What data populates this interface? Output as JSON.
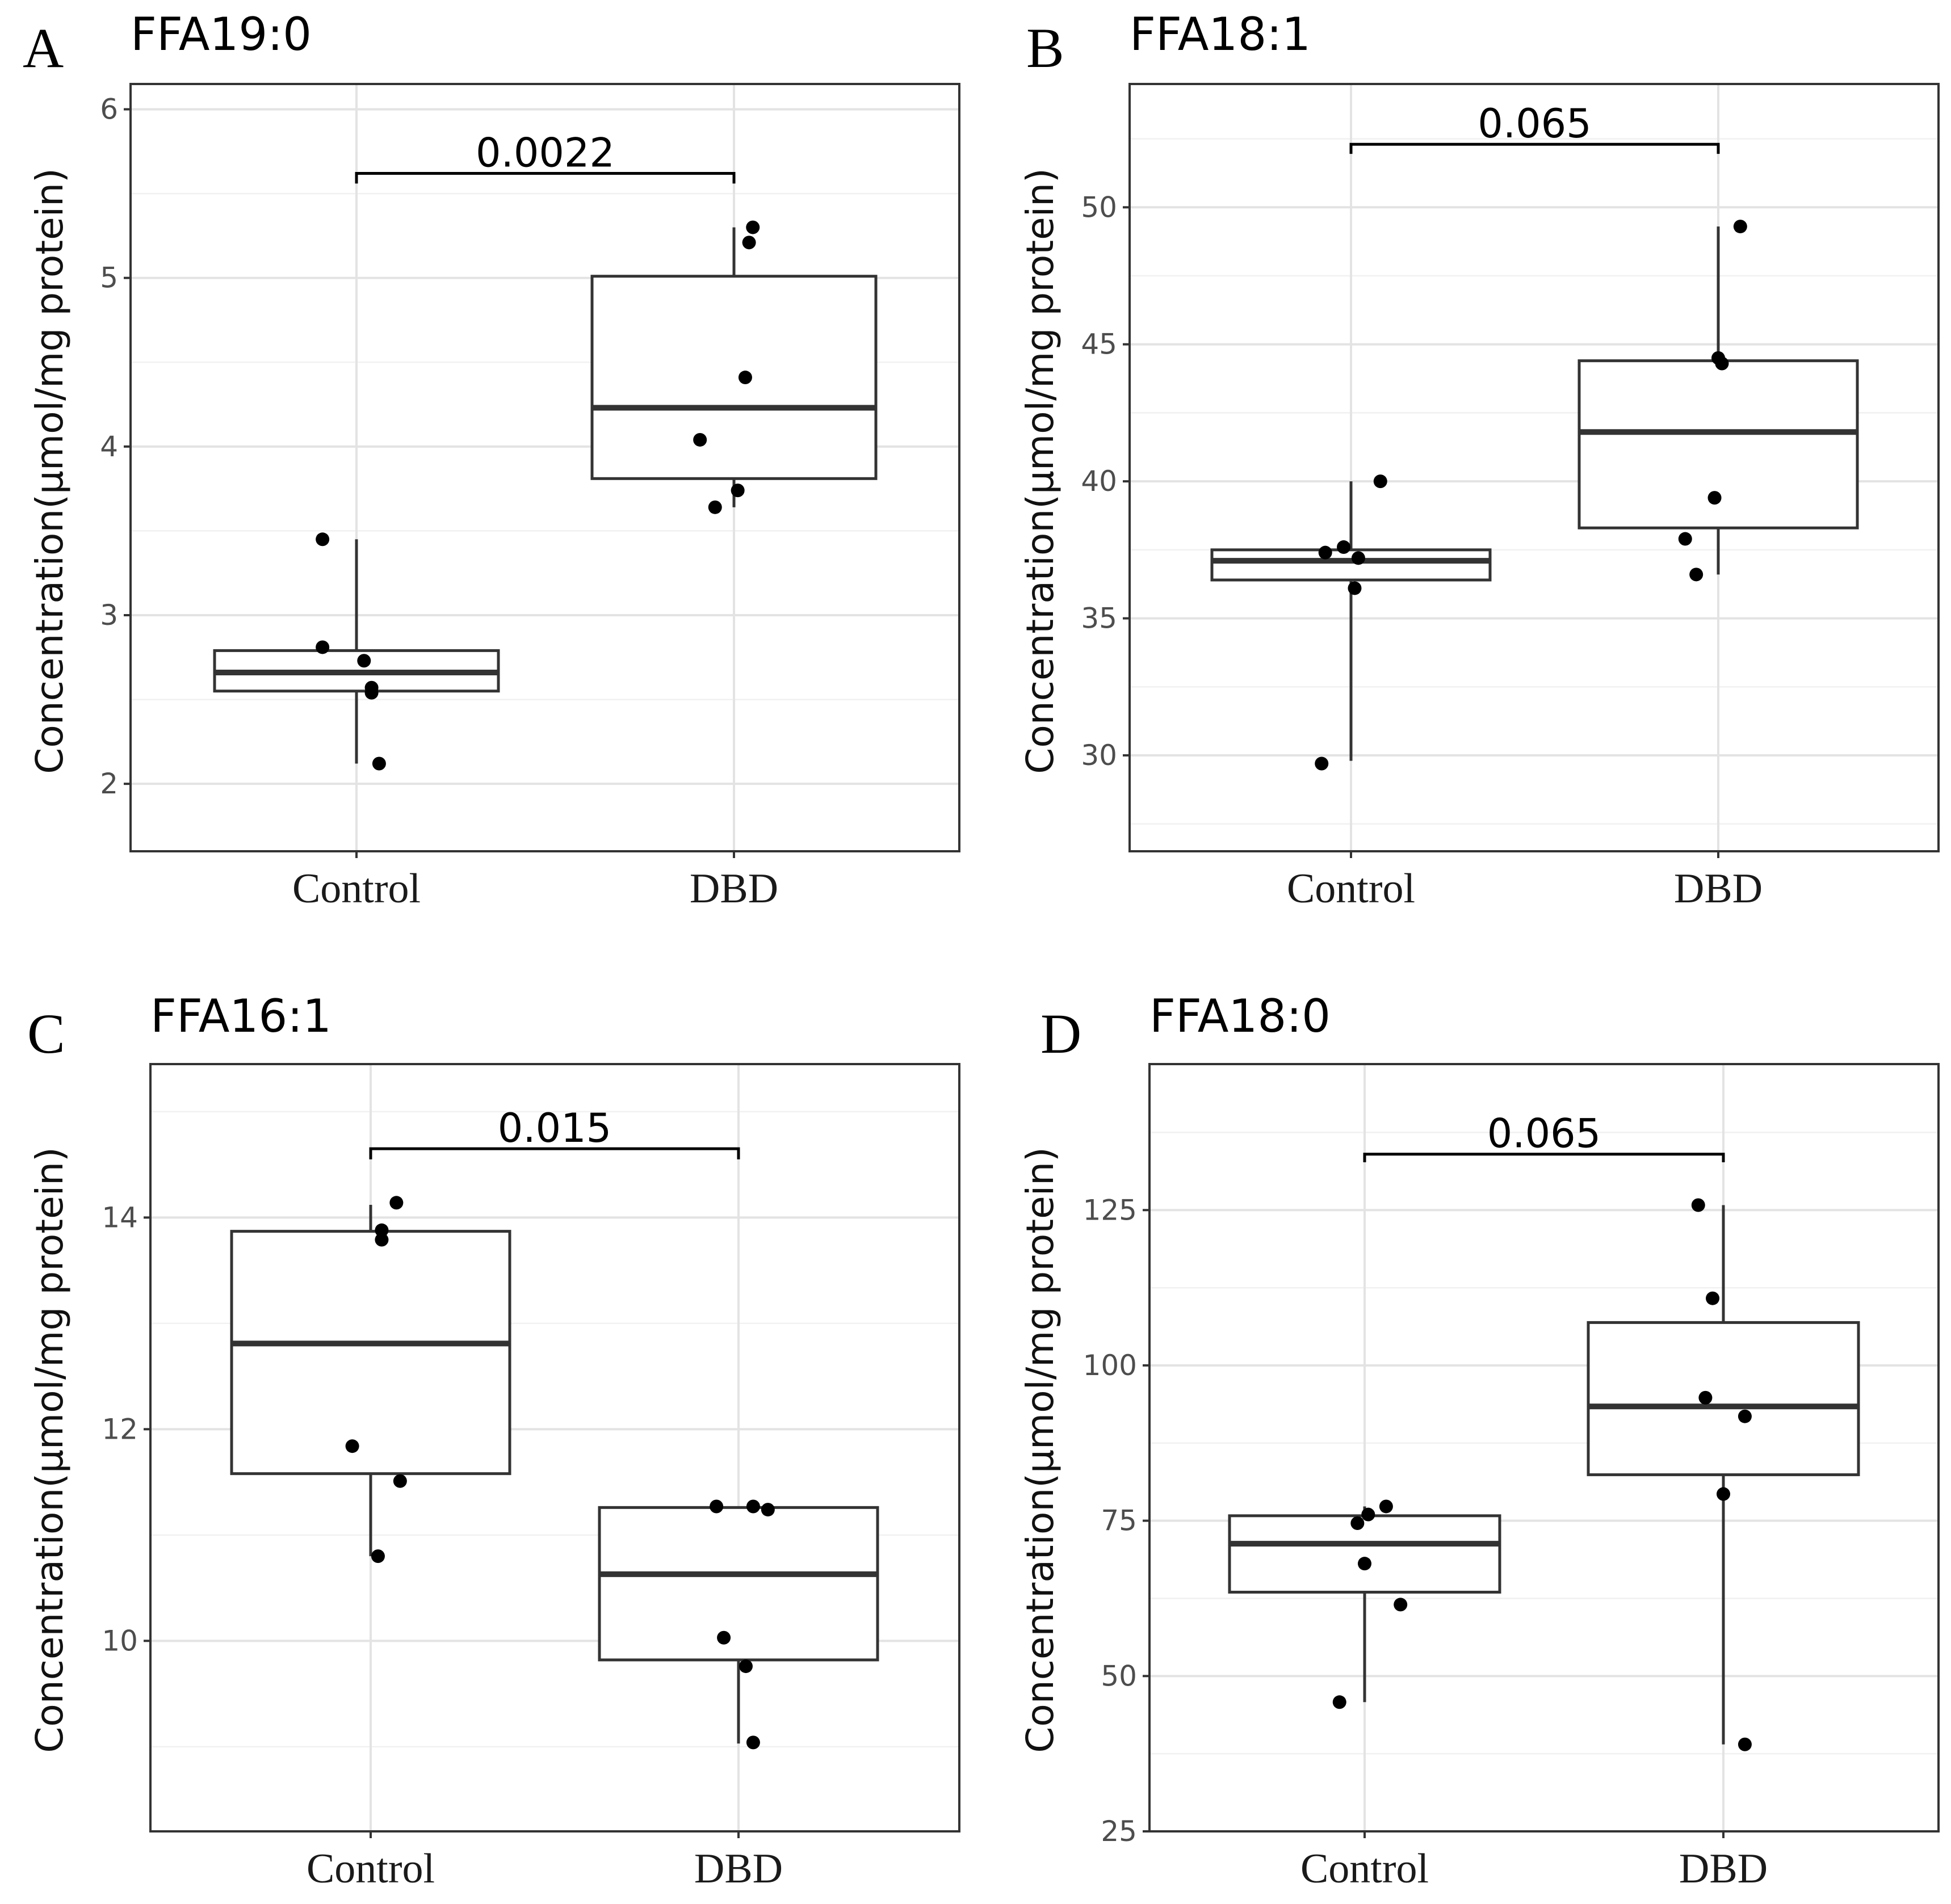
{
  "figure": {
    "y_axis_title": "Concentration(μmol/mg protein)"
  },
  "chart_data": [
    {
      "panel": "A",
      "type": "box",
      "title": "FFA19:0",
      "ylabel": "Concentration(μmol/mg protein)",
      "categories": [
        "Control",
        "DBD"
      ],
      "ylim": [
        1.6,
        6.15
      ],
      "yticks": [
        2,
        3,
        4,
        5,
        6
      ],
      "yticks_labels": [
        "2",
        "3",
        "4",
        "5",
        "6"
      ],
      "boxes": [
        {
          "category": "Control",
          "q1": 2.55,
          "median": 2.66,
          "q3": 2.79,
          "whisker_low": 2.12,
          "whisker_high": 3.45
        },
        {
          "category": "DBD",
          "q1": 3.81,
          "median": 4.23,
          "q3": 5.01,
          "whisker_low": 3.64,
          "whisker_high": 5.3
        }
      ],
      "points": [
        {
          "category": "Control",
          "jitter": -0.09,
          "value": 3.45
        },
        {
          "category": "Control",
          "jitter": -0.09,
          "value": 2.81
        },
        {
          "category": "Control",
          "jitter": 0.02,
          "value": 2.73
        },
        {
          "category": "Control",
          "jitter": 0.04,
          "value": 2.57
        },
        {
          "category": "Control",
          "jitter": 0.04,
          "value": 2.54
        },
        {
          "category": "Control",
          "jitter": 0.06,
          "value": 2.12
        },
        {
          "category": "DBD",
          "jitter": 0.05,
          "value": 5.3
        },
        {
          "category": "DBD",
          "jitter": 0.04,
          "value": 5.21
        },
        {
          "category": "DBD",
          "jitter": 0.03,
          "value": 4.41
        },
        {
          "category": "DBD",
          "jitter": -0.09,
          "value": 4.04
        },
        {
          "category": "DBD",
          "jitter": 0.01,
          "value": 3.74
        },
        {
          "category": "DBD",
          "jitter": -0.05,
          "value": 3.64
        }
      ],
      "comparison": {
        "label": "0.0022",
        "y": 5.62,
        "tip": 0.06
      }
    },
    {
      "panel": "B",
      "type": "box",
      "title": "FFA18:1",
      "ylabel": "Concentration(μmol/mg protein)",
      "categories": [
        "Control",
        "DBD"
      ],
      "ylim": [
        26.5,
        54.5
      ],
      "yticks": [
        30,
        35,
        40,
        45,
        50
      ],
      "yticks_labels": [
        "30",
        "35",
        "40",
        "45",
        "50"
      ],
      "boxes": [
        {
          "category": "Control",
          "q1": 36.4,
          "median": 37.1,
          "q3": 37.5,
          "whisker_low": 29.8,
          "whisker_high": 40.0
        },
        {
          "category": "DBD",
          "q1": 38.3,
          "median": 41.8,
          "q3": 44.4,
          "whisker_low": 36.6,
          "whisker_high": 49.3
        }
      ],
      "points": [
        {
          "category": "Control",
          "jitter": 0.08,
          "value": 40.0
        },
        {
          "category": "Control",
          "jitter": -0.02,
          "value": 37.6
        },
        {
          "category": "Control",
          "jitter": -0.07,
          "value": 37.4
        },
        {
          "category": "Control",
          "jitter": 0.02,
          "value": 37.2
        },
        {
          "category": "Control",
          "jitter": 0.01,
          "value": 36.1
        },
        {
          "category": "Control",
          "jitter": -0.08,
          "value": 29.7
        },
        {
          "category": "DBD",
          "jitter": 0.06,
          "value": 49.3
        },
        {
          "category": "DBD",
          "jitter": 0.0,
          "value": 44.5
        },
        {
          "category": "DBD",
          "jitter": 0.01,
          "value": 44.3
        },
        {
          "category": "DBD",
          "jitter": -0.01,
          "value": 39.4
        },
        {
          "category": "DBD",
          "jitter": -0.09,
          "value": 37.9
        },
        {
          "category": "DBD",
          "jitter": -0.06,
          "value": 36.6
        }
      ],
      "comparison": {
        "label": "0.065",
        "y": 52.3,
        "tip": 0.35
      }
    },
    {
      "panel": "C",
      "type": "box",
      "title": "FFA16:1",
      "ylabel": "Concentration(μmol/mg protein)",
      "categories": [
        "Control",
        "DBD"
      ],
      "ylim": [
        8.2,
        15.45
      ],
      "yticks": [
        10,
        12,
        14
      ],
      "yticks_labels": [
        "10",
        "12",
        "14"
      ],
      "boxes": [
        {
          "category": "Control",
          "q1": 11.58,
          "median": 12.81,
          "q3": 13.87,
          "whisker_low": 10.8,
          "whisker_high": 14.12
        },
        {
          "category": "DBD",
          "q1": 9.82,
          "median": 10.63,
          "q3": 11.26,
          "whisker_low": 9.03,
          "whisker_high": 11.27
        }
      ],
      "points": [
        {
          "category": "Control",
          "jitter": 0.07,
          "value": 14.14
        },
        {
          "category": "Control",
          "jitter": 0.03,
          "value": 13.88
        },
        {
          "category": "Control",
          "jitter": 0.03,
          "value": 13.79
        },
        {
          "category": "Control",
          "jitter": -0.05,
          "value": 11.84
        },
        {
          "category": "Control",
          "jitter": 0.08,
          "value": 11.51
        },
        {
          "category": "Control",
          "jitter": 0.02,
          "value": 10.8
        },
        {
          "category": "DBD",
          "jitter": -0.06,
          "value": 11.27
        },
        {
          "category": "DBD",
          "jitter": 0.04,
          "value": 11.27
        },
        {
          "category": "DBD",
          "jitter": 0.08,
          "value": 11.24
        },
        {
          "category": "DBD",
          "jitter": -0.04,
          "value": 10.03
        },
        {
          "category": "DBD",
          "jitter": 0.02,
          "value": 9.76
        },
        {
          "category": "DBD",
          "jitter": 0.04,
          "value": 9.04
        }
      ],
      "comparison": {
        "label": "0.015",
        "y": 14.65,
        "tip": 0.1
      }
    },
    {
      "panel": "D",
      "type": "box",
      "title": "FFA18:0",
      "ylabel": "Concentration(μmol/mg protein)",
      "categories": [
        "Control",
        "DBD"
      ],
      "ylim": [
        25,
        148.5
      ],
      "yticks": [
        25,
        50,
        75,
        100,
        125
      ],
      "yticks_labels": [
        "25",
        "50",
        "75",
        "100",
        "125"
      ],
      "boxes": [
        {
          "category": "Control",
          "q1": 63.5,
          "median": 71.3,
          "q3": 75.8,
          "whisker_low": 45.8,
          "whisker_high": 77.3
        },
        {
          "category": "DBD",
          "q1": 82.4,
          "median": 93.4,
          "q3": 106.9,
          "whisker_low": 39.0,
          "whisker_high": 125.8
        }
      ],
      "points": [
        {
          "category": "Control",
          "jitter": 0.06,
          "value": 77.3
        },
        {
          "category": "Control",
          "jitter": 0.01,
          "value": 76.0
        },
        {
          "category": "Control",
          "jitter": -0.02,
          "value": 74.6
        },
        {
          "category": "Control",
          "jitter": 0.0,
          "value": 68.1
        },
        {
          "category": "Control",
          "jitter": 0.1,
          "value": 61.5
        },
        {
          "category": "Control",
          "jitter": -0.07,
          "value": 45.8
        },
        {
          "category": "DBD",
          "jitter": -0.07,
          "value": 125.8
        },
        {
          "category": "DBD",
          "jitter": -0.03,
          "value": 110.8
        },
        {
          "category": "DBD",
          "jitter": -0.05,
          "value": 94.8
        },
        {
          "category": "DBD",
          "jitter": 0.06,
          "value": 91.8
        },
        {
          "category": "DBD",
          "jitter": 0.0,
          "value": 79.3
        },
        {
          "category": "DBD",
          "jitter": 0.06,
          "value": 39.0
        }
      ],
      "comparison": {
        "label": "0.065",
        "y": 134.0,
        "tip": 1.3
      }
    }
  ]
}
